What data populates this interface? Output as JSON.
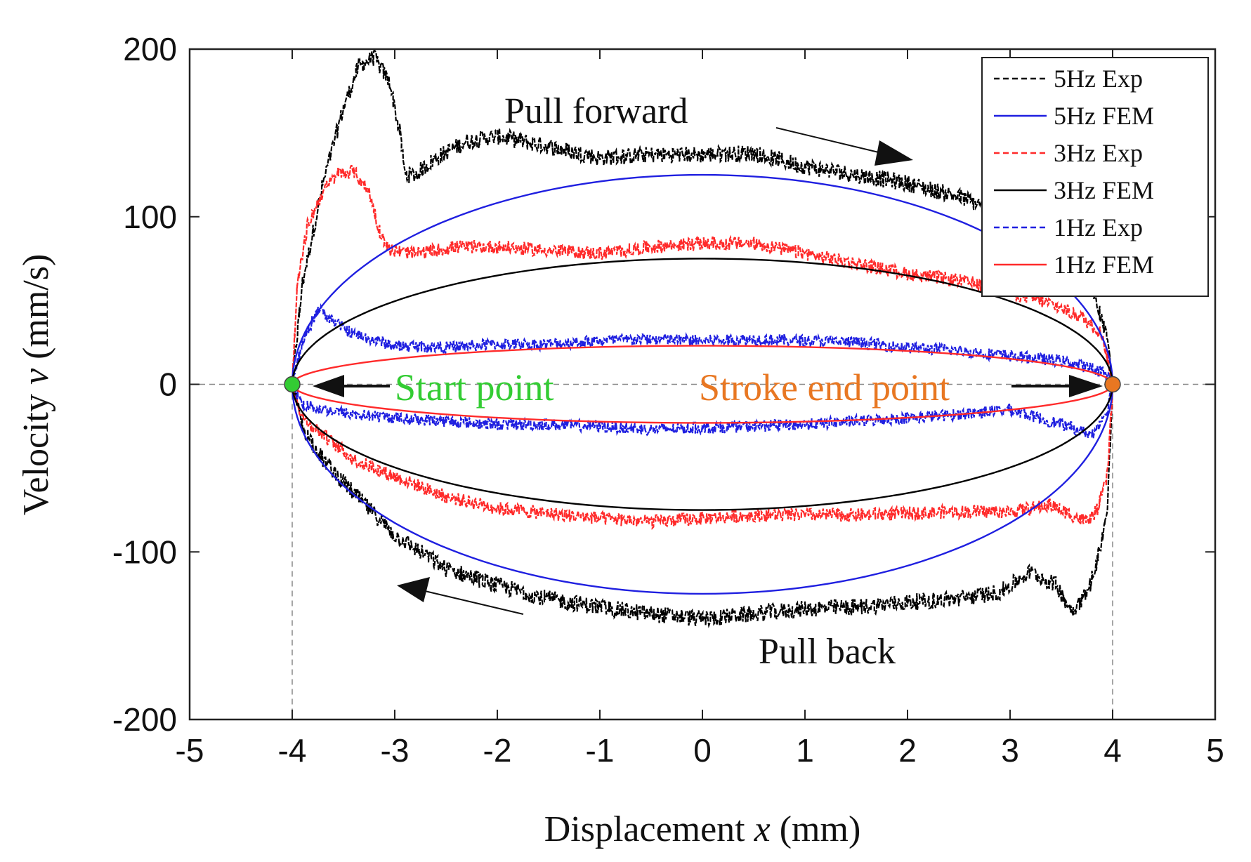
{
  "chart_data": {
    "type": "line",
    "xlabel": {
      "prefix": "Displacement ",
      "var": "x",
      "suffix": " (mm)"
    },
    "ylabel": {
      "prefix": "Velocity ",
      "var": "v",
      "suffix": " (mm/s)"
    },
    "xlim": [
      -5,
      5
    ],
    "ylim": [
      -200,
      200
    ],
    "xticks": [
      -5,
      -4,
      -3,
      -2,
      -1,
      0,
      1,
      2,
      3,
      4,
      5
    ],
    "yticks": [
      -200,
      -100,
      0,
      100,
      200
    ],
    "grid": false,
    "legend_position": "top-right",
    "legend": [
      {
        "name": "5Hz Exp",
        "color": "#000000",
        "dash": "dashed"
      },
      {
        "name": "5Hz FEM",
        "color": "#1f1fe0",
        "dash": "solid"
      },
      {
        "name": "3Hz Exp",
        "color": "#ff2a2a",
        "dash": "dashed"
      },
      {
        "name": "3Hz FEM",
        "color": "#000000",
        "dash": "solid"
      },
      {
        "name": "1Hz Exp",
        "color": "#1f1fe0",
        "dash": "dashed"
      },
      {
        "name": "1Hz FEM",
        "color": "#ff2a2a",
        "dash": "solid"
      }
    ],
    "series": [
      {
        "name": "5Hz FEM",
        "kind": "fem",
        "color": "#1f1fe0",
        "amplitude_mm": 4,
        "peak_velocity": 125
      },
      {
        "name": "3Hz FEM",
        "kind": "fem",
        "color": "#000000",
        "amplitude_mm": 4,
        "peak_velocity": 75
      },
      {
        "name": "1Hz FEM",
        "kind": "fem",
        "color": "#ff2a2a",
        "amplitude_mm": 4,
        "peak_velocity": 23
      },
      {
        "name": "5Hz Exp",
        "kind": "exp",
        "color": "#000000",
        "upper": [
          [
            -4.0,
            0
          ],
          [
            -3.9,
            60
          ],
          [
            -3.7,
            120
          ],
          [
            -3.5,
            165
          ],
          [
            -3.35,
            190
          ],
          [
            -3.2,
            195
          ],
          [
            -3.05,
            180
          ],
          [
            -2.95,
            150
          ],
          [
            -2.9,
            125
          ],
          [
            -2.8,
            125
          ],
          [
            -2.6,
            135
          ],
          [
            -2.3,
            145
          ],
          [
            -2.0,
            148
          ],
          [
            -1.5,
            142
          ],
          [
            -1.0,
            135
          ],
          [
            -0.5,
            137
          ],
          [
            0.0,
            137
          ],
          [
            0.5,
            138
          ],
          [
            1.0,
            130
          ],
          [
            1.5,
            125
          ],
          [
            2.0,
            120
          ],
          [
            2.5,
            112
          ],
          [
            3.0,
            100
          ],
          [
            3.5,
            85
          ],
          [
            3.8,
            60
          ],
          [
            3.95,
            25
          ],
          [
            4.0,
            0
          ]
        ],
        "lower": [
          [
            -4.0,
            0
          ],
          [
            -3.9,
            -25
          ],
          [
            -3.7,
            -45
          ],
          [
            -3.4,
            -65
          ],
          [
            -3.0,
            -90
          ],
          [
            -2.5,
            -110
          ],
          [
            -2.0,
            -120
          ],
          [
            -1.5,
            -128
          ],
          [
            -1.0,
            -133
          ],
          [
            -0.5,
            -137
          ],
          [
            0.0,
            -140
          ],
          [
            0.5,
            -137
          ],
          [
            1.0,
            -134
          ],
          [
            1.5,
            -133
          ],
          [
            2.0,
            -130
          ],
          [
            2.5,
            -128
          ],
          [
            2.9,
            -124
          ],
          [
            3.2,
            -112
          ],
          [
            3.45,
            -120
          ],
          [
            3.6,
            -135
          ],
          [
            3.75,
            -125
          ],
          [
            3.85,
            -105
          ],
          [
            3.95,
            -75
          ],
          [
            4.0,
            0
          ]
        ],
        "noise": 5
      },
      {
        "name": "3Hz Exp",
        "kind": "exp",
        "color": "#ff2a2a",
        "upper": [
          [
            -4.0,
            0
          ],
          [
            -3.95,
            60
          ],
          [
            -3.85,
            95
          ],
          [
            -3.7,
            115
          ],
          [
            -3.55,
            126
          ],
          [
            -3.4,
            127
          ],
          [
            -3.25,
            115
          ],
          [
            -3.15,
            92
          ],
          [
            -3.05,
            80
          ],
          [
            -2.8,
            78
          ],
          [
            -2.4,
            82
          ],
          [
            -2.0,
            82
          ],
          [
            -1.5,
            80
          ],
          [
            -1.0,
            78
          ],
          [
            -0.5,
            82
          ],
          [
            0.0,
            84
          ],
          [
            0.5,
            84
          ],
          [
            1.0,
            78
          ],
          [
            1.5,
            72
          ],
          [
            2.0,
            66
          ],
          [
            2.5,
            62
          ],
          [
            3.0,
            55
          ],
          [
            3.4,
            48
          ],
          [
            3.7,
            40
          ],
          [
            3.9,
            30
          ],
          [
            4.0,
            0
          ]
        ],
        "lower": [
          [
            -4.0,
            0
          ],
          [
            -3.9,
            -20
          ],
          [
            -3.7,
            -30
          ],
          [
            -3.4,
            -45
          ],
          [
            -3.0,
            -55
          ],
          [
            -2.5,
            -67
          ],
          [
            -2.0,
            -74
          ],
          [
            -1.5,
            -77
          ],
          [
            -1.0,
            -80
          ],
          [
            -0.5,
            -82
          ],
          [
            0.0,
            -80
          ],
          [
            0.5,
            -78
          ],
          [
            1.0,
            -78
          ],
          [
            1.5,
            -78
          ],
          [
            2.0,
            -77
          ],
          [
            2.5,
            -76
          ],
          [
            3.0,
            -76
          ],
          [
            3.4,
            -72
          ],
          [
            3.6,
            -78
          ],
          [
            3.75,
            -82
          ],
          [
            3.85,
            -75
          ],
          [
            3.95,
            -55
          ],
          [
            4.0,
            0
          ]
        ],
        "noise": 4
      },
      {
        "name": "1Hz Exp",
        "kind": "exp",
        "color": "#1f1fe0",
        "upper": [
          [
            -4.0,
            0
          ],
          [
            -3.9,
            25
          ],
          [
            -3.75,
            45
          ],
          [
            -3.6,
            38
          ],
          [
            -3.4,
            30
          ],
          [
            -3.0,
            23
          ],
          [
            -2.5,
            22
          ],
          [
            -2.0,
            24
          ],
          [
            -1.5,
            24
          ],
          [
            -1.0,
            26
          ],
          [
            -0.5,
            27
          ],
          [
            0.0,
            26
          ],
          [
            0.5,
            27
          ],
          [
            1.0,
            26
          ],
          [
            1.5,
            25
          ],
          [
            2.0,
            22
          ],
          [
            2.5,
            20
          ],
          [
            3.0,
            17
          ],
          [
            3.5,
            14
          ],
          [
            3.9,
            8
          ],
          [
            4.0,
            0
          ]
        ],
        "lower": [
          [
            -4.0,
            0
          ],
          [
            -3.9,
            -12
          ],
          [
            -3.7,
            -15
          ],
          [
            -3.4,
            -18
          ],
          [
            -3.0,
            -20
          ],
          [
            -2.5,
            -22
          ],
          [
            -2.0,
            -24
          ],
          [
            -1.5,
            -24
          ],
          [
            -1.0,
            -25
          ],
          [
            -0.5,
            -27
          ],
          [
            0.0,
            -26
          ],
          [
            0.5,
            -25
          ],
          [
            1.0,
            -24
          ],
          [
            1.5,
            -22
          ],
          [
            2.0,
            -20
          ],
          [
            2.5,
            -18
          ],
          [
            3.0,
            -15
          ],
          [
            3.5,
            -24
          ],
          [
            3.8,
            -30
          ],
          [
            3.95,
            -15
          ],
          [
            4.0,
            0
          ]
        ],
        "noise": 3.5
      }
    ],
    "markers": [
      {
        "name": "start-point",
        "x": -4,
        "y": 0,
        "color": "#33cc33"
      },
      {
        "name": "stroke-end-point",
        "x": 4,
        "y": 0,
        "color": "#e87722"
      }
    ],
    "vlines": [
      -4,
      4
    ],
    "hline": 0,
    "annotations": {
      "pull_forward": "Pull forward",
      "pull_back": "Pull back",
      "start_point": "Start point",
      "stroke_end_point": "Stroke end point"
    },
    "annotation_colors": {
      "start_point": "#33cc33",
      "stroke_end_point": "#e87722"
    }
  }
}
